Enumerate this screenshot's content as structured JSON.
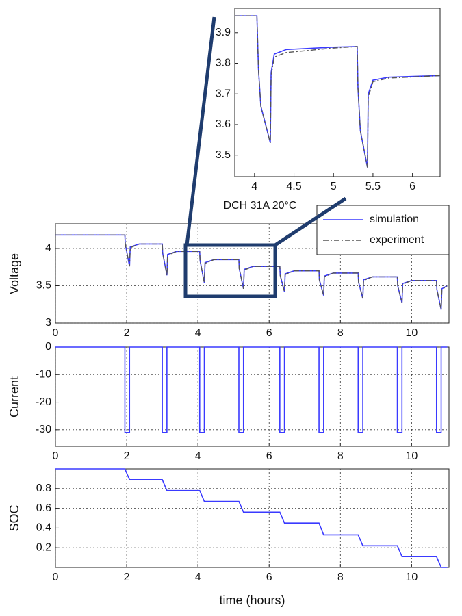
{
  "chart_data": [
    {
      "type": "line",
      "x": [
        3.75,
        4.03,
        4.05,
        4.08,
        4.2,
        4.21,
        4.25,
        4.4,
        5.0,
        5.3,
        5.31,
        5.34,
        5.43,
        5.44,
        5.5,
        5.7,
        6.35
      ],
      "series": [
        {
          "name": "simulation",
          "color": "#3a3aff",
          "values": [
            3.955,
            3.955,
            3.78,
            3.66,
            3.54,
            3.77,
            3.83,
            3.845,
            3.853,
            3.855,
            3.72,
            3.58,
            3.46,
            3.7,
            3.745,
            3.755,
            3.76
          ]
        },
        {
          "name": "experiment",
          "color": "#555555",
          "values": [
            3.955,
            3.955,
            3.78,
            3.66,
            3.54,
            3.76,
            3.82,
            3.835,
            3.85,
            3.855,
            3.72,
            3.58,
            3.46,
            3.69,
            3.74,
            3.752,
            3.76
          ]
        }
      ],
      "xlim": [
        3.75,
        6.35
      ],
      "xticks": [
        4,
        4.5,
        5,
        5.5,
        6
      ],
      "ylim": [
        3.43,
        3.98
      ],
      "yticks": [
        3.5,
        3.6,
        3.7,
        3.8,
        3.9
      ],
      "grid": false
    },
    {
      "type": "line",
      "title": "DCH 31A 20°C",
      "ylabel": "Voltage",
      "legend": "upper right",
      "x": [
        0,
        1.95,
        1.96,
        2.08,
        2.1,
        2.35,
        3.0,
        3.01,
        3.13,
        3.15,
        3.4,
        4.05,
        4.06,
        4.18,
        4.2,
        4.45,
        5.15,
        5.16,
        5.28,
        5.3,
        5.55,
        6.3,
        6.31,
        6.43,
        6.45,
        6.7,
        7.4,
        7.41,
        7.53,
        7.55,
        7.8,
        8.5,
        8.51,
        8.63,
        8.65,
        8.9,
        9.6,
        9.61,
        9.73,
        9.75,
        10.0,
        10.7,
        10.71,
        10.83,
        10.85,
        11
      ],
      "series": [
        {
          "name": "simulation",
          "color": "#3a3aff",
          "values": [
            4.18,
            4.18,
            4.06,
            3.76,
            4.02,
            4.06,
            4.06,
            3.94,
            3.64,
            3.92,
            3.96,
            3.96,
            3.84,
            3.54,
            3.81,
            3.85,
            3.85,
            3.73,
            3.46,
            3.72,
            3.76,
            3.76,
            3.64,
            3.42,
            3.66,
            3.7,
            3.7,
            3.58,
            3.37,
            3.63,
            3.67,
            3.67,
            3.55,
            3.33,
            3.58,
            3.62,
            3.62,
            3.5,
            3.27,
            3.53,
            3.57,
            3.57,
            3.45,
            3.18,
            3.46,
            3.5
          ]
        },
        {
          "name": "experiment",
          "color": "#555555",
          "values": [
            4.18,
            4.18,
            4.06,
            3.76,
            4.01,
            4.06,
            4.06,
            3.94,
            3.64,
            3.91,
            3.96,
            3.96,
            3.84,
            3.54,
            3.8,
            3.85,
            3.85,
            3.73,
            3.46,
            3.71,
            3.76,
            3.76,
            3.64,
            3.42,
            3.65,
            3.7,
            3.7,
            3.58,
            3.37,
            3.62,
            3.67,
            3.67,
            3.55,
            3.33,
            3.57,
            3.62,
            3.62,
            3.5,
            3.27,
            3.52,
            3.57,
            3.57,
            3.45,
            3.18,
            3.45,
            3.5
          ]
        }
      ],
      "xlim": [
        0,
        11.05
      ],
      "xticks": [
        0,
        2,
        4,
        6,
        8,
        10
      ],
      "ylim": [
        3,
        4.33
      ],
      "yticks": [
        3,
        3.5,
        4
      ],
      "grid": true
    },
    {
      "type": "line",
      "ylabel": "Current",
      "color": "#3a3aff",
      "x": [
        0,
        1.95,
        1.95,
        2.08,
        2.08,
        3.0,
        3.0,
        3.13,
        3.13,
        4.05,
        4.05,
        4.18,
        4.18,
        5.15,
        5.15,
        5.28,
        5.28,
        6.3,
        6.3,
        6.43,
        6.43,
        7.4,
        7.4,
        7.53,
        7.53,
        8.5,
        8.5,
        8.63,
        8.63,
        9.6,
        9.6,
        9.73,
        9.73,
        10.7,
        10.7,
        10.83,
        10.83,
        11
      ],
      "values": [
        0,
        0,
        -31,
        -31,
        0,
        0,
        -31,
        -31,
        0,
        0,
        -31,
        -31,
        0,
        0,
        -31,
        -31,
        0,
        0,
        -31,
        -31,
        0,
        0,
        -31,
        -31,
        0,
        0,
        -31,
        -31,
        0,
        0,
        -31,
        -31,
        0,
        0,
        -31,
        -31,
        0,
        0
      ],
      "xlim": [
        0,
        11.05
      ],
      "xticks": [
        0,
        2,
        4,
        6,
        8,
        10
      ],
      "ylim": [
        -36,
        0
      ],
      "yticks": [
        0,
        -10,
        -20,
        -30
      ],
      "grid": true
    },
    {
      "type": "line",
      "ylabel": "SOC",
      "xlabel": "time (hours)",
      "color": "#3a3aff",
      "x": [
        0,
        1.95,
        2.08,
        3.0,
        3.13,
        4.05,
        4.18,
        5.15,
        5.28,
        6.3,
        6.43,
        7.4,
        7.53,
        8.5,
        8.63,
        9.6,
        9.73,
        10.7,
        10.83,
        11
      ],
      "values": [
        1,
        1,
        0.89,
        0.89,
        0.78,
        0.78,
        0.67,
        0.67,
        0.56,
        0.56,
        0.45,
        0.45,
        0.33,
        0.33,
        0.22,
        0.22,
        0.11,
        0.11,
        0,
        0
      ],
      "xlim": [
        0,
        11.05
      ],
      "xticks": [
        0,
        2,
        4,
        6,
        8,
        10
      ],
      "ylim": [
        0,
        1
      ],
      "yticks": [
        0.2,
        0.4,
        0.6,
        0.8
      ],
      "grid": true
    }
  ]
}
